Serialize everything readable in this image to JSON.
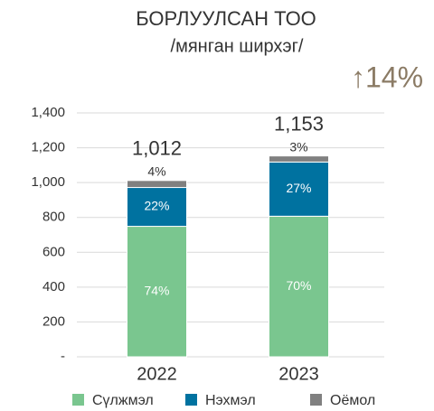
{
  "chart_data": {
    "type": "stacked_bar",
    "title": "БОРЛУУЛСАН ТОО",
    "subtitle": "/мянган ширхэг/",
    "annotation": "↑14%",
    "categories": [
      "2022",
      "2023"
    ],
    "totals": [
      "1,012",
      "1,153"
    ],
    "series": [
      {
        "name": "Сүлжмэл",
        "color": "#7ac68f",
        "values": [
          749,
          807
        ],
        "labels": [
          "74%",
          "70%"
        ]
      },
      {
        "name": "Нэхмэл",
        "color": "#0072a0",
        "values": [
          223,
          311
        ],
        "labels": [
          "22%",
          "27%"
        ]
      },
      {
        "name": "Оёмол",
        "color": "#808080",
        "values": [
          40,
          35
        ],
        "labels": [
          "4%",
          "3%"
        ]
      }
    ],
    "ylim": [
      0,
      1400
    ],
    "yticks": [
      {
        "value": 0,
        "label": "-"
      },
      200,
      400,
      600,
      800,
      {
        "value": 1000,
        "label": "1,000"
      },
      {
        "value": 1200,
        "label": "1,200"
      },
      {
        "value": 1400,
        "label": "1,400"
      }
    ],
    "grid": true
  }
}
